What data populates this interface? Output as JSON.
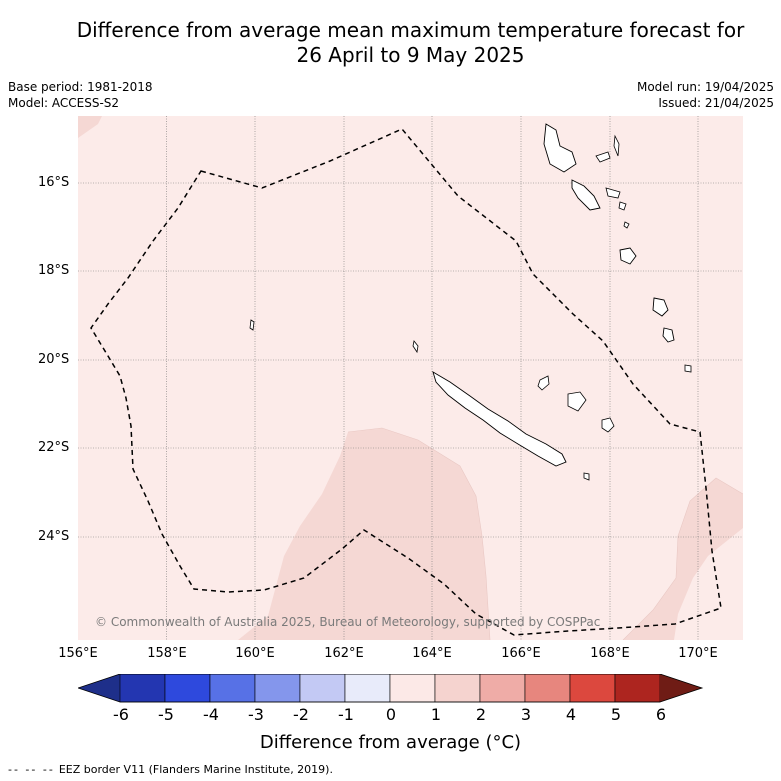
{
  "title_line1": "Difference from average mean maximum temperature forecast for",
  "title_line2": "26 April to 9 May 2025",
  "base_period": "Base period: 1981-2018",
  "model": "Model: ACCESS-S2",
  "model_run": "Model run: 19/04/2025",
  "issued": "Issued: 21/04/2025",
  "copyright": "© Commonwealth of Australia 2025, Bureau of Meteorology, supported by COSPPac",
  "lat_labels": [
    "16°S",
    "18°S",
    "20°S",
    "22°S",
    "24°S"
  ],
  "lon_labels": [
    "156°E",
    "158°E",
    "160°E",
    "162°E",
    "164°E",
    "166°E",
    "168°E",
    "170°E"
  ],
  "colorbar": {
    "ticks": [
      "-6",
      "-5",
      "-4",
      "-3",
      "-2",
      "-1",
      "0",
      "1",
      "2",
      "3",
      "4",
      "5",
      "6"
    ],
    "colors": [
      "#1e2f8a",
      "#2336b1",
      "#2e49dd",
      "#5771e6",
      "#8496ec",
      "#c3c9f4",
      "#e8ebfa",
      "#fce9e7",
      "#f5d3cf",
      "#efaca7",
      "#e7867e",
      "#dc483e",
      "#ad251f",
      "#6f1c15"
    ],
    "label": "Difference from average (°C)"
  },
  "map_colors": {
    "background": "#fcebe9",
    "warm_zone": "#f5d8d4"
  },
  "legend_note": "EEZ border V11 (Flanders Marine Institute, 2019)."
}
